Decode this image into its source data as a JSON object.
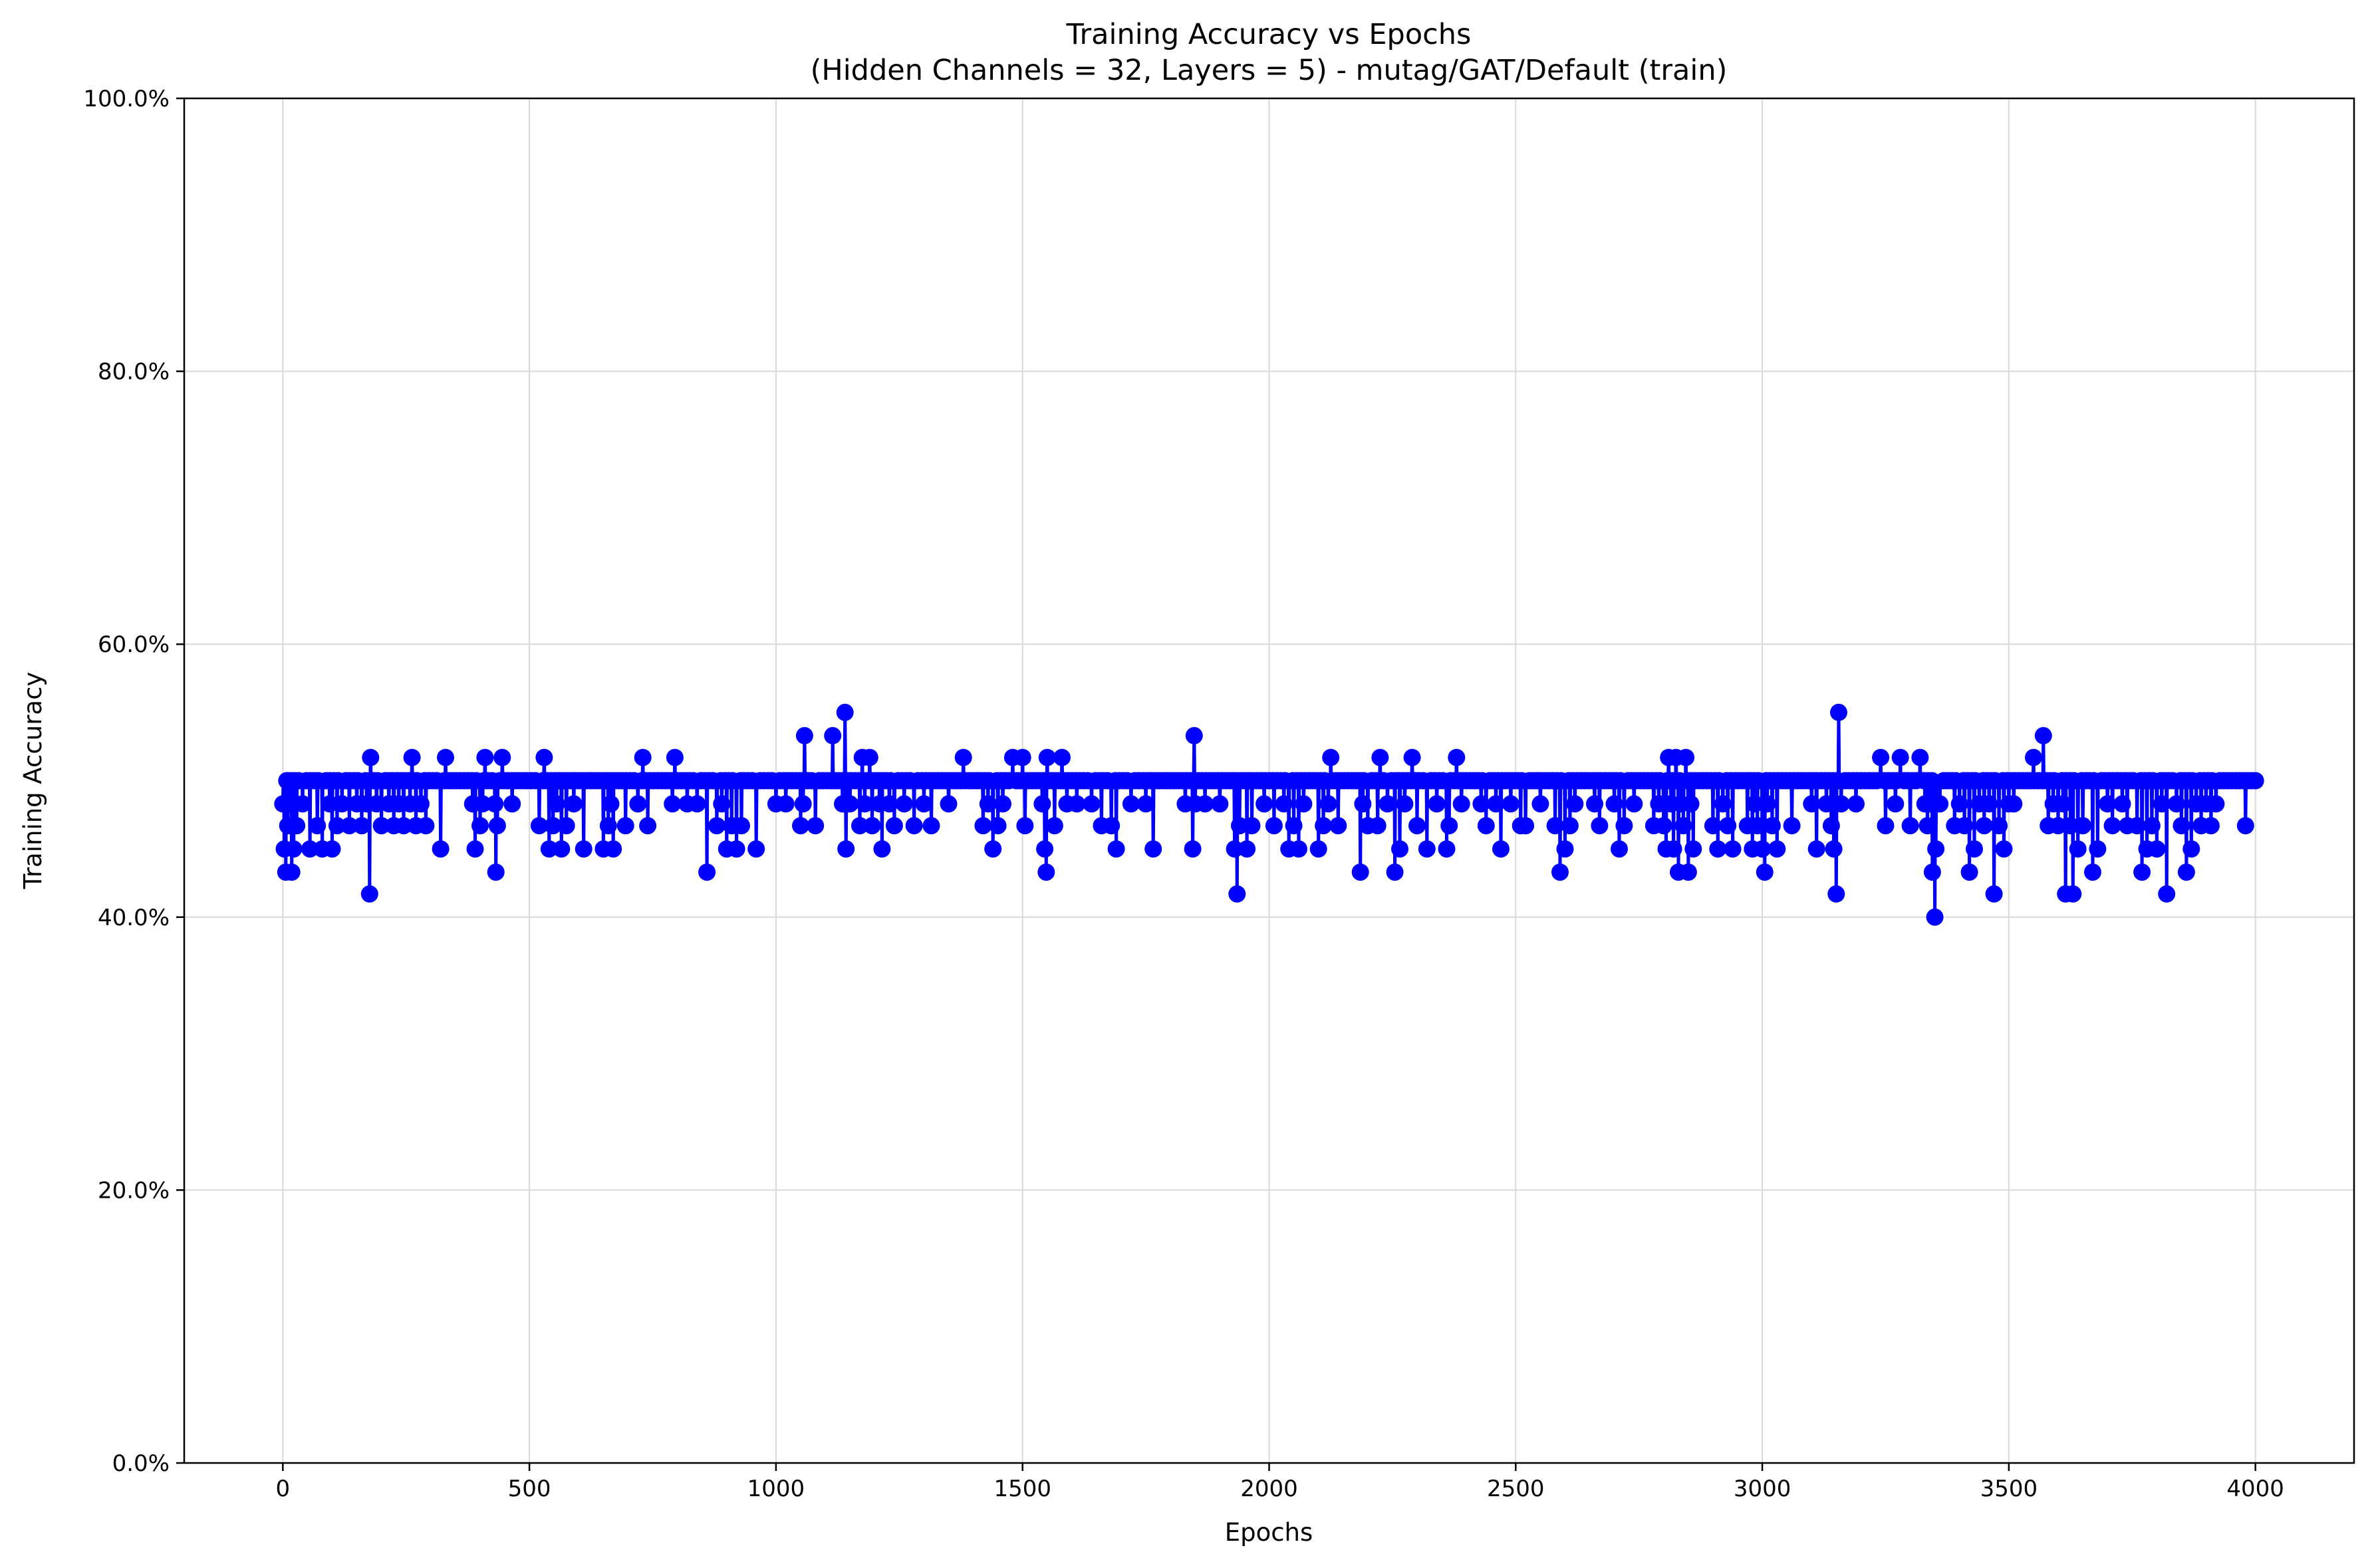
{
  "chart_data": {
    "type": "line",
    "title": "Training Accuracy vs Epochs",
    "subtitle": "(Hidden Channels = 32, Layers = 5) - mutag/GAT/Default (train)",
    "xlabel": "Epochs",
    "ylabel": "Training Accuracy",
    "xlim": [
      -200,
      4200
    ],
    "ylim": [
      0,
      100
    ],
    "x_ticks": [
      0,
      500,
      1000,
      1500,
      2000,
      2500,
      3000,
      3500,
      4000
    ],
    "x_tick_labels": [
      "0",
      "500",
      "1000",
      "1500",
      "2000",
      "2500",
      "3000",
      "3500",
      "4000"
    ],
    "y_ticks": [
      0,
      20,
      40,
      60,
      80,
      100
    ],
    "y_tick_labels": [
      "0.0%",
      "20.0%",
      "40.0%",
      "60.0%",
      "80.0%",
      "100.0%"
    ],
    "grid": true,
    "legend": "none",
    "series": [
      {
        "color": "#0000ff",
        "marker": "circle",
        "baseline": 50.0,
        "x_range": [
          0,
          4000
        ],
        "note_points": "baseline value 50.0 at every epoch except the listed dips/spikes",
        "points": [
          [
            0,
            48.3
          ],
          [
            3,
            45.0
          ],
          [
            6,
            43.3
          ],
          [
            10,
            46.7
          ],
          [
            14,
            48.3
          ],
          [
            18,
            43.3
          ],
          [
            22,
            45.0
          ],
          [
            28,
            46.7
          ],
          [
            40,
            48.3
          ],
          [
            55,
            45.0
          ],
          [
            70,
            46.7
          ],
          [
            80,
            45.0
          ],
          [
            95,
            48.3
          ],
          [
            100,
            45.0
          ],
          [
            110,
            46.7
          ],
          [
            120,
            48.3
          ],
          [
            135,
            46.7
          ],
          [
            150,
            48.3
          ],
          [
            160,
            46.7
          ],
          [
            170,
            48.3
          ],
          [
            176,
            41.7
          ],
          [
            178,
            51.7
          ],
          [
            190,
            48.3
          ],
          [
            200,
            46.7
          ],
          [
            215,
            48.3
          ],
          [
            225,
            46.7
          ],
          [
            235,
            48.3
          ],
          [
            245,
            46.7
          ],
          [
            258,
            48.3
          ],
          [
            262,
            51.7
          ],
          [
            270,
            46.7
          ],
          [
            280,
            48.3
          ],
          [
            290,
            46.7
          ],
          [
            320,
            45.0
          ],
          [
            330,
            51.7
          ],
          [
            385,
            48.3
          ],
          [
            390,
            45.0
          ],
          [
            400,
            46.7
          ],
          [
            405,
            48.3
          ],
          [
            410,
            51.7
          ],
          [
            430,
            48.3
          ],
          [
            432,
            43.3
          ],
          [
            435,
            46.7
          ],
          [
            445,
            51.7
          ],
          [
            465,
            48.3
          ],
          [
            520,
            46.7
          ],
          [
            530,
            51.7
          ],
          [
            540,
            45.0
          ],
          [
            548,
            46.7
          ],
          [
            555,
            48.3
          ],
          [
            565,
            45.0
          ],
          [
            575,
            46.7
          ],
          [
            590,
            48.3
          ],
          [
            610,
            45.0
          ],
          [
            650,
            45.0
          ],
          [
            660,
            46.7
          ],
          [
            665,
            48.3
          ],
          [
            670,
            45.0
          ],
          [
            695,
            46.7
          ],
          [
            720,
            48.3
          ],
          [
            730,
            51.7
          ],
          [
            740,
            46.7
          ],
          [
            790,
            48.3
          ],
          [
            795,
            51.7
          ],
          [
            820,
            48.3
          ],
          [
            840,
            48.3
          ],
          [
            860,
            43.3
          ],
          [
            880,
            46.7
          ],
          [
            890,
            48.3
          ],
          [
            900,
            45.0
          ],
          [
            910,
            46.7
          ],
          [
            920,
            45.0
          ],
          [
            930,
            46.7
          ],
          [
            960,
            45.0
          ],
          [
            1000,
            48.3
          ],
          [
            1020,
            48.3
          ],
          [
            1050,
            46.7
          ],
          [
            1055,
            48.3
          ],
          [
            1058,
            53.3
          ],
          [
            1080,
            46.7
          ],
          [
            1115,
            53.3
          ],
          [
            1135,
            48.3
          ],
          [
            1140,
            55.0
          ],
          [
            1142,
            45.0
          ],
          [
            1150,
            48.3
          ],
          [
            1170,
            46.7
          ],
          [
            1175,
            51.7
          ],
          [
            1180,
            48.3
          ],
          [
            1190,
            51.7
          ],
          [
            1195,
            46.7
          ],
          [
            1210,
            48.3
          ],
          [
            1215,
            45.0
          ],
          [
            1230,
            48.3
          ],
          [
            1240,
            46.7
          ],
          [
            1260,
            48.3
          ],
          [
            1280,
            46.7
          ],
          [
            1300,
            48.3
          ],
          [
            1315,
            46.7
          ],
          [
            1350,
            48.3
          ],
          [
            1380,
            51.7
          ],
          [
            1420,
            46.7
          ],
          [
            1430,
            48.3
          ],
          [
            1440,
            45.0
          ],
          [
            1450,
            46.7
          ],
          [
            1460,
            48.3
          ],
          [
            1480,
            51.7
          ],
          [
            1500,
            51.7
          ],
          [
            1505,
            46.7
          ],
          [
            1540,
            48.3
          ],
          [
            1545,
            45.0
          ],
          [
            1548,
            43.3
          ],
          [
            1550,
            51.7
          ],
          [
            1565,
            46.7
          ],
          [
            1580,
            51.7
          ],
          [
            1590,
            48.3
          ],
          [
            1610,
            48.3
          ],
          [
            1640,
            48.3
          ],
          [
            1660,
            46.7
          ],
          [
            1680,
            46.7
          ],
          [
            1690,
            45.0
          ],
          [
            1720,
            48.3
          ],
          [
            1750,
            48.3
          ],
          [
            1765,
            45.0
          ],
          [
            1830,
            48.3
          ],
          [
            1845,
            45.0
          ],
          [
            1848,
            53.3
          ],
          [
            1850,
            48.3
          ],
          [
            1870,
            48.3
          ],
          [
            1900,
            48.3
          ],
          [
            1930,
            45.0
          ],
          [
            1935,
            41.7
          ],
          [
            1940,
            46.7
          ],
          [
            1955,
            45.0
          ],
          [
            1965,
            46.7
          ],
          [
            1990,
            48.3
          ],
          [
            2010,
            46.7
          ],
          [
            2030,
            48.3
          ],
          [
            2040,
            45.0
          ],
          [
            2050,
            46.7
          ],
          [
            2060,
            45.0
          ],
          [
            2070,
            48.3
          ],
          [
            2100,
            45.0
          ],
          [
            2110,
            46.7
          ],
          [
            2120,
            48.3
          ],
          [
            2125,
            51.7
          ],
          [
            2140,
            46.7
          ],
          [
            2185,
            43.3
          ],
          [
            2190,
            48.3
          ],
          [
            2200,
            46.7
          ],
          [
            2220,
            46.7
          ],
          [
            2225,
            51.7
          ],
          [
            2240,
            48.3
          ],
          [
            2255,
            43.3
          ],
          [
            2265,
            45.0
          ],
          [
            2275,
            48.3
          ],
          [
            2290,
            51.7
          ],
          [
            2300,
            46.7
          ],
          [
            2320,
            45.0
          ],
          [
            2340,
            48.3
          ],
          [
            2360,
            45.0
          ],
          [
            2365,
            46.7
          ],
          [
            2380,
            51.7
          ],
          [
            2390,
            48.3
          ],
          [
            2430,
            48.3
          ],
          [
            2440,
            46.7
          ],
          [
            2460,
            48.3
          ],
          [
            2470,
            45.0
          ],
          [
            2490,
            48.3
          ],
          [
            2510,
            46.7
          ],
          [
            2520,
            46.7
          ],
          [
            2550,
            48.3
          ],
          [
            2580,
            46.7
          ],
          [
            2590,
            43.3
          ],
          [
            2600,
            45.0
          ],
          [
            2610,
            46.7
          ],
          [
            2620,
            48.3
          ],
          [
            2660,
            48.3
          ],
          [
            2670,
            46.7
          ],
          [
            2700,
            48.3
          ],
          [
            2710,
            45.0
          ],
          [
            2720,
            46.7
          ],
          [
            2740,
            48.3
          ],
          [
            2780,
            46.7
          ],
          [
            2790,
            48.3
          ],
          [
            2800,
            46.7
          ],
          [
            2805,
            45.0
          ],
          [
            2810,
            51.7
          ],
          [
            2815,
            48.3
          ],
          [
            2820,
            45.0
          ],
          [
            2825,
            51.7
          ],
          [
            2830,
            43.3
          ],
          [
            2835,
            48.3
          ],
          [
            2840,
            46.7
          ],
          [
            2845,
            51.7
          ],
          [
            2850,
            43.3
          ],
          [
            2855,
            48.3
          ],
          [
            2860,
            45.0
          ],
          [
            2900,
            46.7
          ],
          [
            2910,
            45.0
          ],
          [
            2920,
            48.3
          ],
          [
            2930,
            46.7
          ],
          [
            2940,
            45.0
          ],
          [
            2970,
            46.7
          ],
          [
            2980,
            45.0
          ],
          [
            2985,
            48.3
          ],
          [
            2990,
            46.7
          ],
          [
            3000,
            45.0
          ],
          [
            3005,
            43.3
          ],
          [
            3010,
            48.3
          ],
          [
            3020,
            46.7
          ],
          [
            3030,
            45.0
          ],
          [
            3060,
            46.7
          ],
          [
            3100,
            48.3
          ],
          [
            3110,
            45.0
          ],
          [
            3130,
            48.3
          ],
          [
            3140,
            46.7
          ],
          [
            3145,
            45.0
          ],
          [
            3150,
            41.7
          ],
          [
            3155,
            55.0
          ],
          [
            3160,
            48.3
          ],
          [
            3190,
            48.3
          ],
          [
            3240,
            51.7
          ],
          [
            3250,
            46.7
          ],
          [
            3270,
            48.3
          ],
          [
            3280,
            51.7
          ],
          [
            3300,
            46.7
          ],
          [
            3320,
            51.7
          ],
          [
            3330,
            48.3
          ],
          [
            3335,
            46.7
          ],
          [
            3340,
            48.3
          ],
          [
            3345,
            43.3
          ],
          [
            3350,
            40.0
          ],
          [
            3352,
            45.0
          ],
          [
            3360,
            48.3
          ],
          [
            3390,
            46.7
          ],
          [
            3400,
            48.3
          ],
          [
            3410,
            46.7
          ],
          [
            3420,
            43.3
          ],
          [
            3430,
            45.0
          ],
          [
            3440,
            48.3
          ],
          [
            3450,
            46.7
          ],
          [
            3460,
            48.3
          ],
          [
            3470,
            41.7
          ],
          [
            3480,
            46.7
          ],
          [
            3490,
            45.0
          ],
          [
            3500,
            48.3
          ],
          [
            3510,
            48.3
          ],
          [
            3550,
            51.7
          ],
          [
            3570,
            53.3
          ],
          [
            3580,
            46.7
          ],
          [
            3590,
            48.3
          ],
          [
            3600,
            46.7
          ],
          [
            3610,
            48.3
          ],
          [
            3615,
            41.7
          ],
          [
            3625,
            46.7
          ],
          [
            3630,
            41.7
          ],
          [
            3640,
            45.0
          ],
          [
            3650,
            46.7
          ],
          [
            3670,
            43.3
          ],
          [
            3680,
            45.0
          ],
          [
            3700,
            48.3
          ],
          [
            3710,
            46.7
          ],
          [
            3730,
            48.3
          ],
          [
            3740,
            46.7
          ],
          [
            3760,
            46.7
          ],
          [
            3770,
            43.3
          ],
          [
            3780,
            45.0
          ],
          [
            3790,
            46.7
          ],
          [
            3800,
            45.0
          ],
          [
            3810,
            48.3
          ],
          [
            3820,
            41.7
          ],
          [
            3840,
            48.3
          ],
          [
            3850,
            46.7
          ],
          [
            3860,
            43.3
          ],
          [
            3870,
            45.0
          ],
          [
            3880,
            48.3
          ],
          [
            3890,
            46.7
          ],
          [
            3900,
            48.3
          ],
          [
            3910,
            46.7
          ],
          [
            3920,
            48.3
          ],
          [
            3980,
            46.7
          ]
        ]
      }
    ]
  }
}
